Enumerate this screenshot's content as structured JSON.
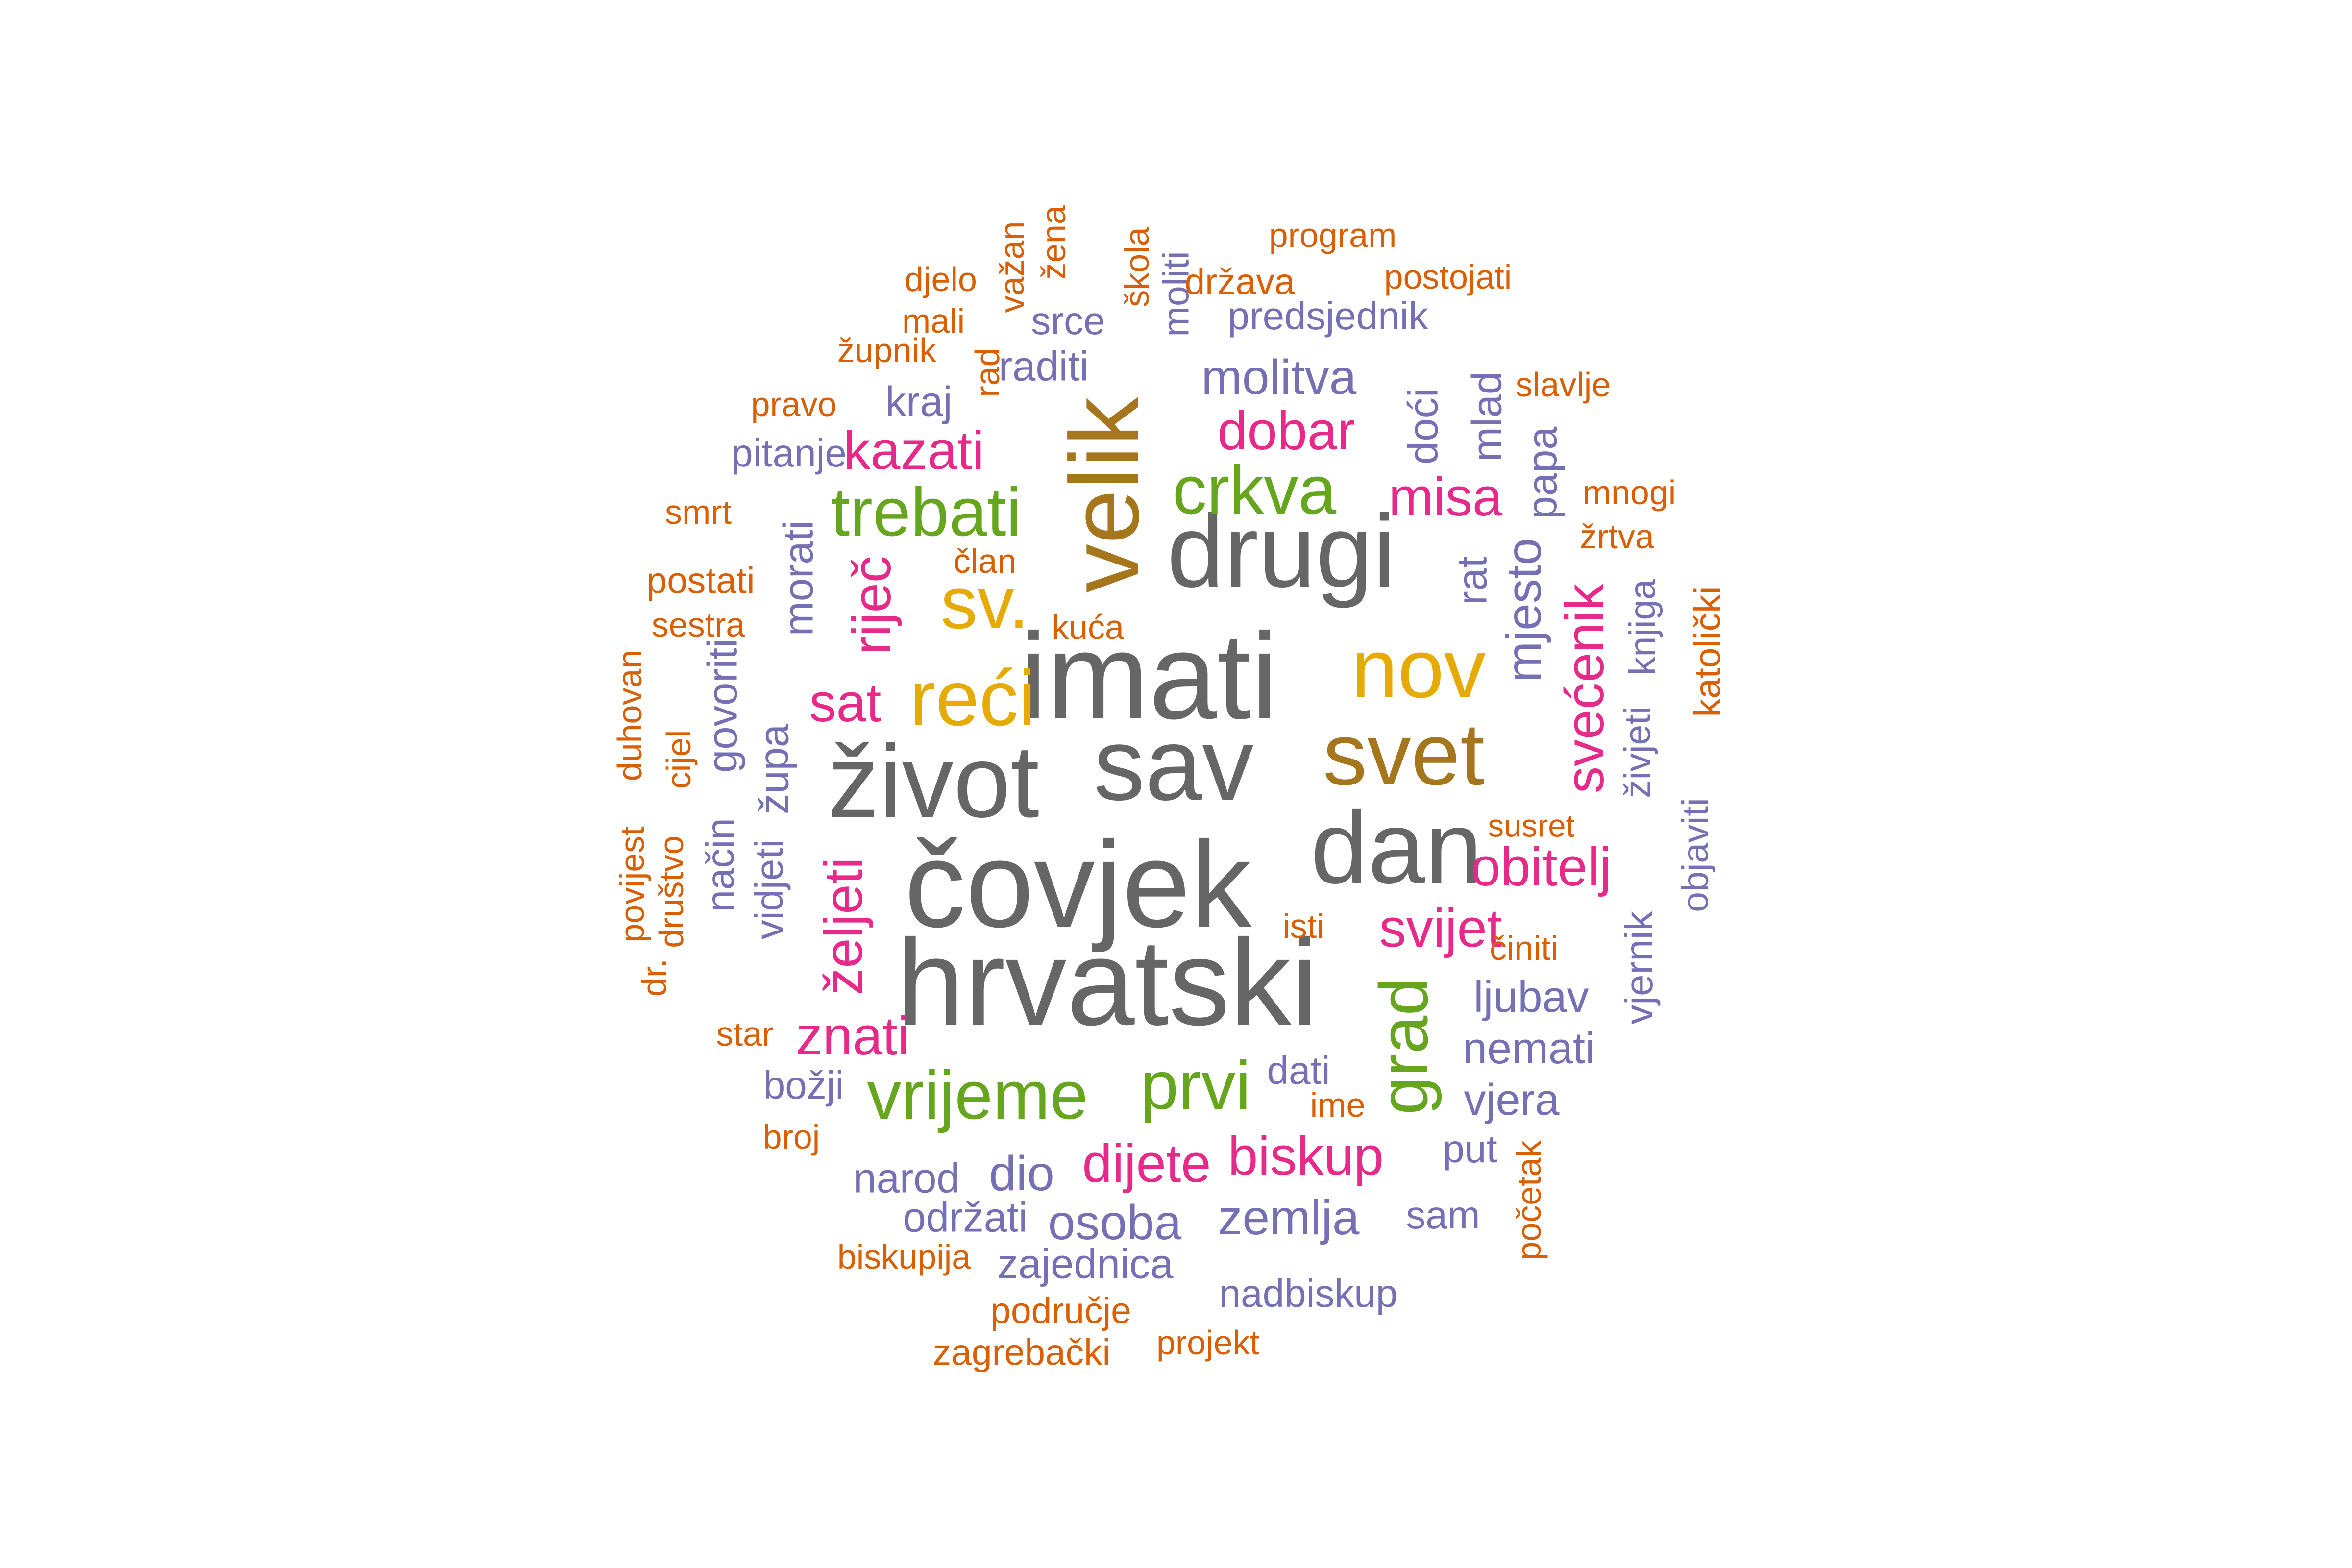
{
  "colors": {
    "gray": "#666666",
    "green": "#66a61e",
    "gold": "#e6ab02",
    "brown": "#a6761d",
    "magenta": "#e7298a",
    "purple": "#7570b3",
    "orange": "#d95f02"
  },
  "words": [
    "hrvatski",
    "čovjek",
    "imati",
    "život",
    "sav",
    "dan",
    "drugi",
    "velik",
    "svet",
    "nov",
    "reći",
    "sv.",
    "trebati",
    "crkva",
    "vrijeme",
    "prvi",
    "grad",
    "riječ",
    "kazati",
    "dobar",
    "misa",
    "sat",
    "svijet",
    "obitelj",
    "svećenik",
    "dijete",
    "biskup",
    "znati",
    "željeti",
    "molitva",
    "mjesto",
    "papa",
    "mlad",
    "doći",
    "rat",
    "moliti",
    "predsjednik",
    "raditi",
    "srce",
    "kraj",
    "pitanje",
    "morati",
    "župa",
    "govoriti",
    "vidjeti",
    "način",
    "živjeti",
    "knjiga",
    "vjernik",
    "objaviti",
    "ljubav",
    "nemati",
    "vjera",
    "put",
    "sam",
    "dati",
    "božji",
    "narod",
    "dio",
    "održati",
    "osoba",
    "zemlja",
    "zajednica",
    "nadbiskup",
    "program",
    "država",
    "postojati",
    "djelo",
    "važan",
    "žena",
    "škola",
    "mali",
    "župnik",
    "rad",
    "pravo",
    "slavlje",
    "mnogi",
    "žrtva",
    "smrt",
    "član",
    "postati",
    "kuća",
    "sestra",
    "duhovan",
    "cijel",
    "katolički",
    "susret",
    "povijest",
    "društvo",
    "dr.",
    "isti",
    "činiti",
    "star",
    "ime",
    "broj",
    "početak",
    "biskupija",
    "područje",
    "projekt",
    "zagrebački"
  ]
}
